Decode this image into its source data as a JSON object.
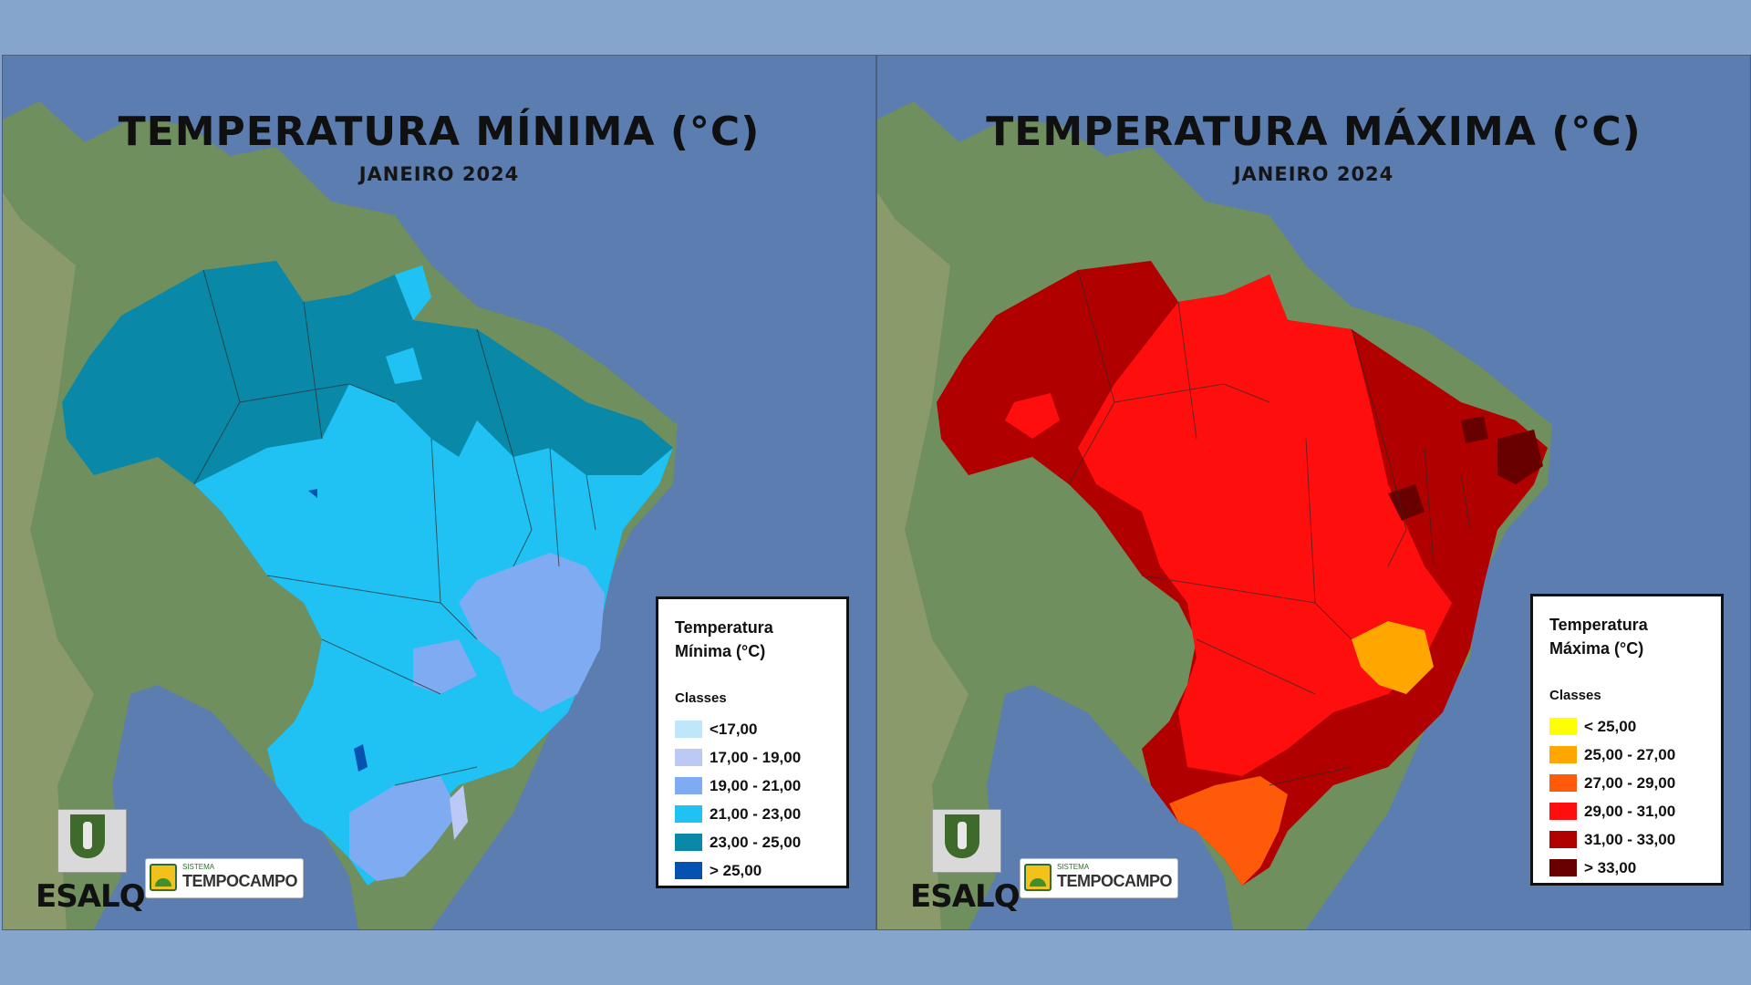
{
  "panels": [
    {
      "title": "TEMPERATURA MÍNIMA (°C)",
      "subtitle": "JANEIRO 2024",
      "legend_title": "Temperatura Mínima (°C)",
      "legend_subtitle": "Classes",
      "classes": [
        {
          "label": "<17,00",
          "color": "#bfe6fb"
        },
        {
          "label": "17,00 - 19,00",
          "color": "#bcc9f5"
        },
        {
          "label": "19,00 - 21,00",
          "color": "#7eabf2"
        },
        {
          "label": "21,00 - 23,00",
          "color": "#1fc2f3"
        },
        {
          "label": "23,00 - 25,00",
          "color": "#0a88a7"
        },
        {
          "label": "> 25,00",
          "color": "#0652b0"
        }
      ]
    },
    {
      "title": "TEMPERATURA MÁXIMA (°C)",
      "subtitle": "JANEIRO 2024",
      "legend_title": "Temperatura Máxima (°C)",
      "legend_subtitle": "Classes",
      "classes": [
        {
          "label": "< 25,00",
          "color": "#ffff00"
        },
        {
          "label": "25,00 - 27,00",
          "color": "#ffa600"
        },
        {
          "label": "27,00 - 29,00",
          "color": "#ff5a0a"
        },
        {
          "label": "29,00 - 31,00",
          "color": "#ff0e0e"
        },
        {
          "label": "31,00 - 33,00",
          "color": "#b00000"
        },
        {
          "label": "> 33,00",
          "color": "#680000"
        }
      ]
    }
  ],
  "logos": {
    "esalq": "ESALQ",
    "tempo_small": "SISTEMA",
    "tempo_big": "TEMPOCAMPO"
  }
}
